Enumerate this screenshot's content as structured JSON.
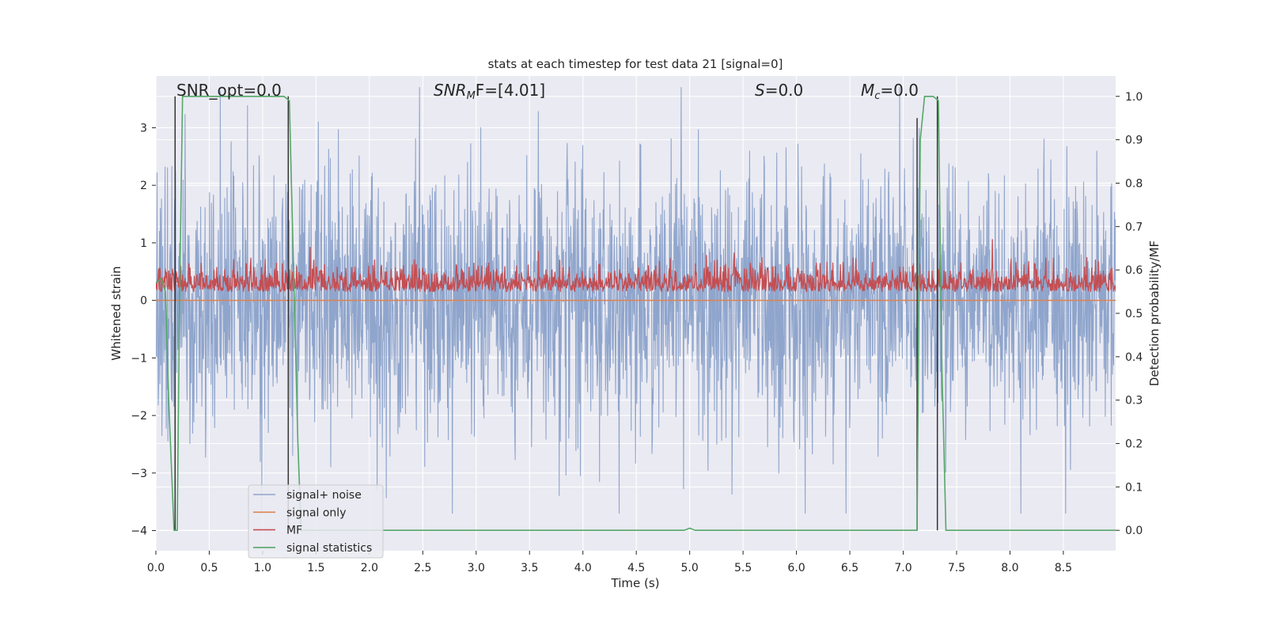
{
  "chart_data": {
    "type": "line",
    "title": "stats at each timestep for test data 21 [signal=0]",
    "xlabel": "Time (s)",
    "ylabel": "Whitened strain",
    "y2label": "Detection probability/MF",
    "xlim": [
      0,
      8.99
    ],
    "ylim": [
      -4.35,
      3.9
    ],
    "y2lim": [
      -0.047,
      1.047
    ],
    "xticks": [
      0.0,
      0.5,
      1.0,
      1.5,
      2.0,
      2.5,
      3.0,
      3.5,
      4.0,
      4.5,
      5.0,
      5.5,
      6.0,
      6.5,
      7.0,
      7.5,
      8.0,
      8.5
    ],
    "xtick_labels": [
      "0.0",
      "0.5",
      "1.0",
      "1.5",
      "2.0",
      "2.5",
      "3.0",
      "3.5",
      "4.0",
      "4.5",
      "5.0",
      "5.5",
      "6.0",
      "6.5",
      "7.0",
      "7.5",
      "8.0",
      "8.5"
    ],
    "yticks": [
      -4,
      -3,
      -2,
      -1,
      0,
      1,
      2,
      3
    ],
    "ytick_labels": [
      "−4",
      "−3",
      "−2",
      "−1",
      "0",
      "1",
      "2",
      "3"
    ],
    "y2ticks": [
      0.0,
      0.1,
      0.2,
      0.3,
      0.4,
      0.5,
      0.6,
      0.7,
      0.8,
      0.9,
      1.0
    ],
    "y2tick_labels": [
      "0.0",
      "0.1",
      "0.2",
      "0.3",
      "0.4",
      "0.5",
      "0.6",
      "0.7",
      "0.8",
      "0.9",
      "1.0"
    ],
    "grid": true,
    "legend_position": "lower-left",
    "colors": {
      "background": "#eaeaf2",
      "grid": "#ffffff",
      "noise": "#8fa5cc",
      "signal_only": "#dd8452",
      "mf": "#c44e52",
      "stats": "#55a868",
      "vline": "#333333"
    },
    "annotations": {
      "snr_opt": "SNR_opt=0.0",
      "snr_mf_base": "SNR",
      "snr_mf_sub": "M",
      "snr_mf_rest": "F=[4.01]",
      "s_base": "S",
      "s_rest": "=0.0",
      "mc_base": "M",
      "mc_sub": "c",
      "mc_rest": "=0.0"
    },
    "series": [
      {
        "name": "signal+ noise",
        "axis": "left",
        "description_range": [
          -3.7,
          3.7
        ],
        "envelope_typical": [
          -1.8,
          1.8
        ]
      },
      {
        "name": "signal only",
        "axis": "left",
        "x": [
          0.0,
          8.99
        ],
        "y": [
          0.0,
          0.0
        ]
      },
      {
        "name": "MF",
        "axis": "right",
        "range": [
          0.55,
          0.68
        ],
        "typical": 0.59
      },
      {
        "name": "signal statistics",
        "axis": "right",
        "x": [
          0.0,
          0.05,
          0.09,
          0.12,
          0.17,
          0.2,
          0.22,
          0.25,
          0.3,
          1.2,
          1.25,
          1.3,
          1.33,
          1.36,
          1.5,
          4.95,
          5.0,
          5.05,
          5.1,
          7.1,
          7.13,
          7.16,
          7.2,
          7.28,
          7.33,
          7.36,
          7.4,
          8.99
        ],
        "y": [
          0.57,
          0.58,
          0.55,
          0.3,
          0.0,
          0.0,
          0.5,
          1.0,
          1.0,
          1.0,
          0.99,
          0.5,
          0.2,
          0.0,
          0.0,
          0.0,
          0.005,
          0.0,
          0.0,
          0.0,
          0.0,
          0.9,
          1.0,
          1.0,
          0.99,
          0.4,
          0.0,
          0.0
        ]
      }
    ],
    "vertical_markers": [
      {
        "x": 0.18,
        "y_top": 1.0,
        "y_bottom": 0.0
      },
      {
        "x": 1.24,
        "y_top": 1.0,
        "y_bottom": 0.0
      },
      {
        "x": 7.13,
        "y_top": 0.95,
        "y_bottom": 0.0
      },
      {
        "x": 7.32,
        "y_top": 1.0,
        "y_bottom": 0.0
      }
    ],
    "legend": [
      {
        "label": "signal+ noise",
        "key": "noise"
      },
      {
        "label": "signal only",
        "key": "signal_only"
      },
      {
        "label": "MF",
        "key": "mf"
      },
      {
        "label": "signal statistics",
        "key": "stats"
      }
    ]
  }
}
